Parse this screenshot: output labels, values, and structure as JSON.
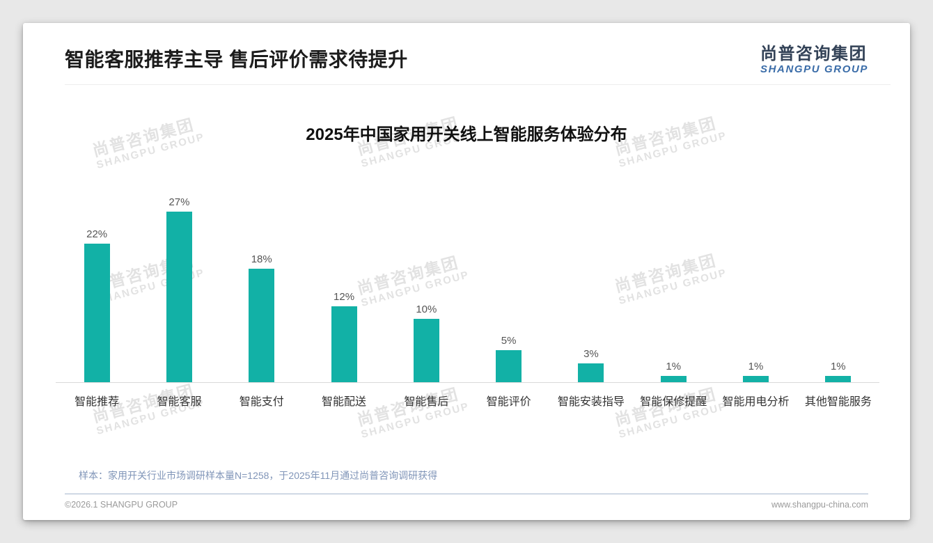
{
  "header": {
    "title": "智能客服推荐主导 售后评价需求待提升",
    "logo": {
      "cn": "尚普咨询集团",
      "en": "SHANGPU GROUP"
    }
  },
  "watermark": {
    "line1": "尚普咨询集团",
    "line2": "SHANGPU GROUP"
  },
  "chart_data": {
    "type": "bar",
    "title": "2025年中国家用开关线上智能服务体验分布",
    "categories": [
      "智能推荐",
      "智能客服",
      "智能支付",
      "智能配送",
      "智能售后",
      "智能评价",
      "智能安装指导",
      "智能保修提醒",
      "智能用电分析",
      "其他智能服务"
    ],
    "values": [
      22,
      27,
      18,
      12,
      10,
      5,
      3,
      1,
      1,
      1
    ],
    "unit": "%",
    "value_labels": [
      "22%",
      "27%",
      "18%",
      "12%",
      "10%",
      "5%",
      "3%",
      "1%",
      "1%",
      "1%"
    ],
    "bar_color": "#12b1a6",
    "value_label_color": "#555555",
    "axis_line_color": "#d9d9d9",
    "xlabel": "",
    "ylabel": "",
    "ylim": [
      0,
      30
    ],
    "grid": false,
    "legend": false
  },
  "footnote": "样本：家用开关行业市场调研样本量N=1258，于2025年11月通过尚普咨询调研获得",
  "footer": {
    "left": "©2026.1 SHANGPU GROUP",
    "right": "www.shangpu-china.com"
  }
}
